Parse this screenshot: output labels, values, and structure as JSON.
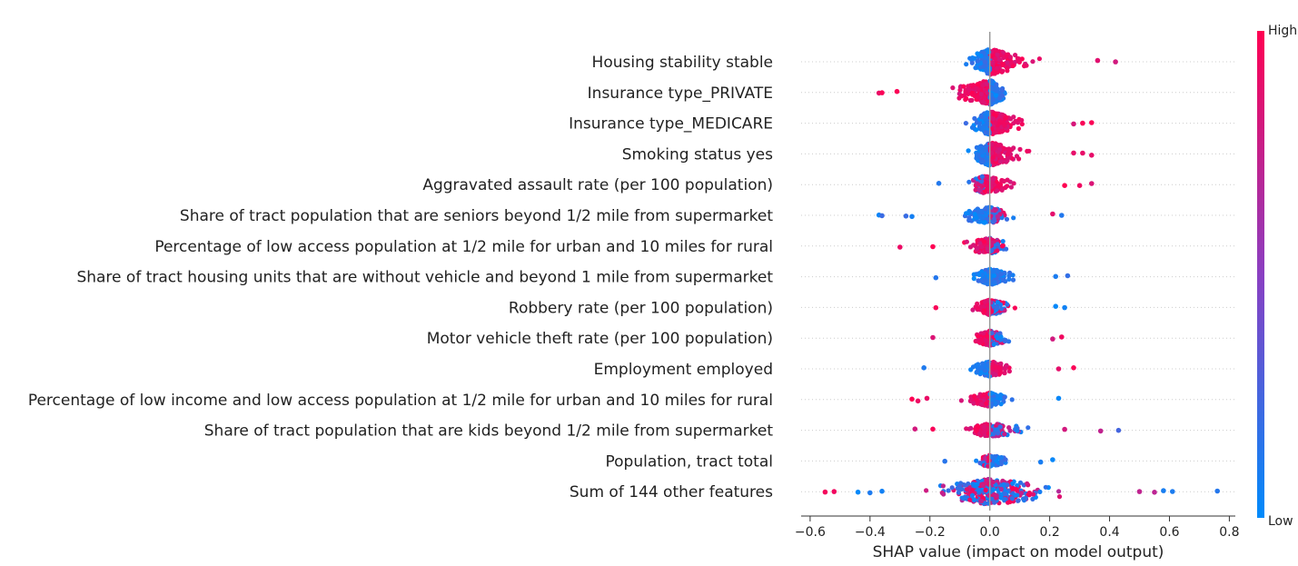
{
  "chart_data": {
    "type": "scatter",
    "subtype": "shap-beeswarm",
    "title": "",
    "xlabel": "SHAP value (impact on model output)",
    "xlim": [
      -0.63,
      0.82
    ],
    "xticks": [
      -0.6,
      -0.4,
      -0.2,
      0.0,
      0.2,
      0.4,
      0.6,
      0.8
    ],
    "xtick_labels": [
      "−0.6",
      "−0.4",
      "−0.2",
      "0.0",
      "0.2",
      "0.4",
      "0.6",
      "0.8"
    ],
    "zero_line": 0.0,
    "grid": false,
    "colorbar": {
      "label_high": "High",
      "label_low": "Low",
      "color_low": "#008bfb",
      "color_mid": "#8a3fc2",
      "color_high": "#ff0052",
      "placement": "right"
    },
    "features": [
      {
        "name": "Housing stability stable",
        "min": -0.22,
        "max": 0.42,
        "split": 0.0,
        "neg_color": "low",
        "pos_color": "high",
        "density": 1.0,
        "outliers": [
          0.42,
          0.36
        ]
      },
      {
        "name": "Insurance type_PRIVATE",
        "min": -0.37,
        "max": 0.18,
        "split": 0.0,
        "neg_color": "high",
        "pos_color": "low",
        "density": 0.95,
        "outliers": [
          -0.37,
          -0.36,
          -0.31
        ]
      },
      {
        "name": "Insurance type_MEDICARE",
        "min": -0.2,
        "max": 0.34,
        "split": 0.0,
        "neg_color": "low",
        "pos_color": "high",
        "density": 0.9,
        "outliers": [
          0.28,
          0.31,
          0.34
        ]
      },
      {
        "name": "Smoking status yes",
        "min": -0.2,
        "max": 0.34,
        "split": 0.0,
        "neg_color": "low",
        "pos_color": "high",
        "density": 0.9,
        "outliers": [
          0.28,
          0.31,
          0.34
        ]
      },
      {
        "name": "Aggravated assault rate (per 100 population)",
        "min": -0.17,
        "max": 0.34,
        "split": -0.02,
        "neg_color": "mixed",
        "pos_color": "high",
        "density": 0.6,
        "outliers": [
          -0.17,
          0.25,
          0.3,
          0.34
        ]
      },
      {
        "name": "Share of tract population that are seniors beyond 1/2 mile from supermarket",
        "min": -0.37,
        "max": 0.24,
        "split": 0.0,
        "neg_color": "low",
        "pos_color": "mixed",
        "density": 0.55,
        "outliers": [
          -0.37,
          -0.36,
          -0.28,
          -0.26,
          0.21,
          0.24
        ]
      },
      {
        "name": "Percentage of low access population at 1/2 mile for urban and 10 miles for rural",
        "min": -0.3,
        "max": 0.21,
        "split": 0.0,
        "neg_color": "high",
        "pos_color": "mixed",
        "density": 0.55,
        "outliers": [
          -0.3,
          -0.19
        ]
      },
      {
        "name": "Share of tract housing units that are without vehicle and beyond 1 mile from supermarket",
        "min": -0.18,
        "max": 0.26,
        "split": 0.0,
        "neg_color": "low",
        "pos_color": "low",
        "density": 0.55,
        "outliers": [
          -0.18,
          0.22,
          0.26
        ]
      },
      {
        "name": "Robbery rate (per 100 population)",
        "min": -0.18,
        "max": 0.25,
        "split": 0.0,
        "neg_color": "high",
        "pos_color": "mixed",
        "density": 0.5,
        "outliers": [
          -0.18,
          0.22,
          0.25
        ]
      },
      {
        "name": "Motor vehicle theft rate (per 100 population)",
        "min": -0.19,
        "max": 0.24,
        "split": 0.0,
        "neg_color": "high",
        "pos_color": "mixed",
        "density": 0.5,
        "outliers": [
          -0.19,
          0.21,
          0.24
        ]
      },
      {
        "name": "Employment employed",
        "min": -0.22,
        "max": 0.28,
        "split": 0.0,
        "neg_color": "low",
        "pos_color": "high",
        "density": 0.5,
        "outliers": [
          -0.22,
          0.23,
          0.28
        ]
      },
      {
        "name": "Percentage of low income and low access population at 1/2 mile for urban and 10 miles for rural",
        "min": -0.26,
        "max": 0.23,
        "split": 0.0,
        "neg_color": "high",
        "pos_color": "low",
        "density": 0.45,
        "outliers": [
          -0.26,
          -0.24,
          -0.21,
          0.23
        ]
      },
      {
        "name": "Share of tract population that are kids beyond 1/2 mile from supermarket",
        "min": -0.25,
        "max": 0.43,
        "split": 0.0,
        "neg_color": "high",
        "pos_color": "mixed",
        "density": 0.45,
        "outliers": [
          -0.25,
          -0.19,
          0.25,
          0.37,
          0.43
        ]
      },
      {
        "name": "Population, tract total",
        "min": -0.15,
        "max": 0.21,
        "split": 0.0,
        "neg_color": "mixed",
        "pos_color": "low",
        "density": 0.35,
        "outliers": [
          -0.15,
          0.17,
          0.21
        ]
      },
      {
        "name": "Sum of 144 other features",
        "min": -0.55,
        "max": 0.76,
        "split": 0.0,
        "neg_color": "mixed",
        "pos_color": "mixed",
        "density": 1.2,
        "outliers": [
          -0.55,
          -0.52,
          -0.44,
          -0.4,
          -0.36,
          0.5,
          0.55,
          0.58,
          0.61,
          0.76
        ]
      }
    ]
  }
}
